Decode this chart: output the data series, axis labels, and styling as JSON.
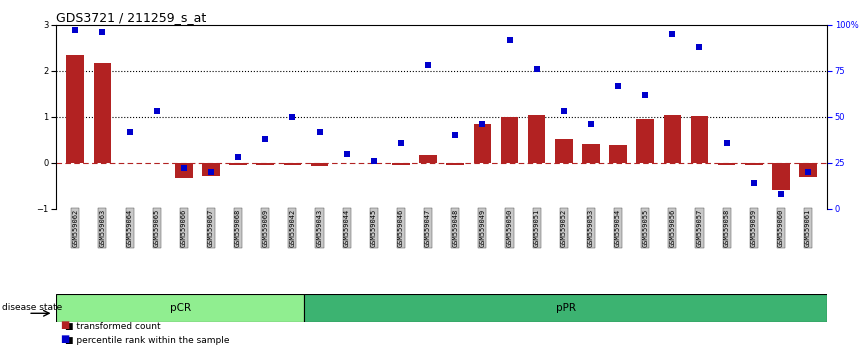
{
  "title": "GDS3721 / 211259_s_at",
  "samples": [
    "GSM559062",
    "GSM559063",
    "GSM559064",
    "GSM559065",
    "GSM559066",
    "GSM559067",
    "GSM559068",
    "GSM559069",
    "GSM559042",
    "GSM559043",
    "GSM559044",
    "GSM559045",
    "GSM559046",
    "GSM559047",
    "GSM559048",
    "GSM559049",
    "GSM559050",
    "GSM559051",
    "GSM559052",
    "GSM559053",
    "GSM559054",
    "GSM559055",
    "GSM559056",
    "GSM559057",
    "GSM559058",
    "GSM559059",
    "GSM559060",
    "GSM559061"
  ],
  "transformed_count": [
    2.35,
    2.18,
    0.0,
    0.0,
    -0.32,
    -0.28,
    -0.04,
    -0.04,
    -0.04,
    -0.06,
    0.0,
    0.0,
    -0.04,
    0.18,
    -0.04,
    0.85,
    1.0,
    1.05,
    0.52,
    0.42,
    0.38,
    0.95,
    1.05,
    1.02,
    -0.04,
    -0.04,
    -0.6,
    -0.3
  ],
  "percentile_rank": [
    97,
    96,
    42,
    53,
    22,
    20,
    28,
    38,
    50,
    42,
    30,
    26,
    36,
    78,
    40,
    46,
    92,
    76,
    53,
    46,
    67,
    62,
    95,
    88,
    36,
    14,
    8,
    20
  ],
  "pCR_count": 9,
  "bar_color": "#B22222",
  "dot_color": "#0000CC",
  "zero_line_color": "#B22222",
  "dotted_line_color": "#000000",
  "pCR_color": "#90EE90",
  "pPR_color": "#3CB371",
  "ylim": [
    -1,
    3
  ],
  "y2lim": [
    0,
    100
  ],
  "yticks_left": [
    -1,
    0,
    1,
    2,
    3
  ],
  "yticks_right": [
    0,
    25,
    50,
    75,
    100
  ],
  "dotted_lines": [
    1.0,
    2.0
  ],
  "title_fontsize": 9,
  "tick_fontsize": 6,
  "label_fontsize": 7,
  "sample_fontsize": 5
}
